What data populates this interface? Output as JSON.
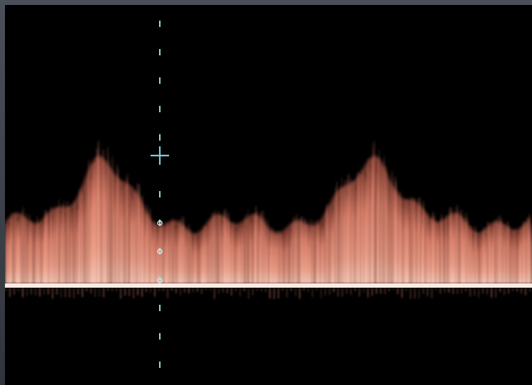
{
  "image": {
    "subject": "doppler-spectral-waveform",
    "colors": {
      "background": "#000000",
      "frame": "#3c4048",
      "spectrum": "#e0806a",
      "spectrum_highlight": "#f4c2b2",
      "baseline": "#ffffff",
      "cursor": "#7fd0d8"
    },
    "icons": {
      "cursor_marker": "crosshair-icon",
      "depth_markers": "circle-marker-icon"
    }
  }
}
